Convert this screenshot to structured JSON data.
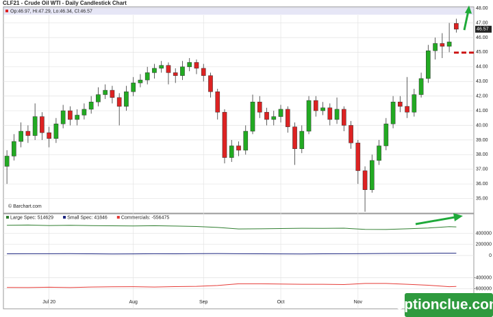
{
  "header": {
    "title": "CLF21 - Crude Oil WTI - Daily Candlestick Chart"
  },
  "watermark": "optionclue.com",
  "chart_data": [
    {
      "type": "candlestick",
      "info": "Op:46.97, Hi:47.29, Lo:46.34, Cl:46.57",
      "credit": "© Barchart.com",
      "up_color": "#22aa22",
      "down_color": "#dd2222",
      "open": [
        37.2,
        37.9,
        38.9,
        39.6,
        39.3,
        40.6,
        39.5,
        39.1,
        40.1,
        41.0,
        40.4,
        40.7,
        41.1,
        41.6,
        42.1,
        42.4,
        41.9,
        41.3,
        42.3,
        42.9,
        43.1,
        43.6,
        43.9,
        44.1,
        43.6,
        43.4,
        44.0,
        44.3,
        43.9,
        43.4,
        42.3,
        40.9,
        37.8,
        38.6,
        38.3,
        39.6,
        41.6,
        40.9,
        40.4,
        40.6,
        41.1,
        39.9,
        38.4,
        39.6,
        41.7,
        41.0,
        41.2,
        40.4,
        41.1,
        40.0,
        38.8,
        36.9,
        35.6,
        37.6,
        38.6,
        40.1,
        41.6,
        41.3,
        40.9,
        42.1,
        43.2,
        45.1,
        45.6,
        45.4,
        46.97
      ],
      "high": [
        38.3,
        39.4,
        40.2,
        40.0,
        41.5,
        40.9,
        39.9,
        40.5,
        41.4,
        41.3,
        41.1,
        41.5,
        42.0,
        42.6,
        42.8,
        42.7,
        42.2,
        42.7,
        43.3,
        43.5,
        44.0,
        44.2,
        44.4,
        44.3,
        43.9,
        44.4,
        44.6,
        44.5,
        44.2,
        43.6,
        42.5,
        41.1,
        39.0,
        38.9,
        40.0,
        42.1,
        42.0,
        41.2,
        41.0,
        41.4,
        41.3,
        40.2,
        40.0,
        42.0,
        42.0,
        41.6,
        41.5,
        41.9,
        41.3,
        40.3,
        39.0,
        37.2,
        38.0,
        39.0,
        40.5,
        42.0,
        42.0,
        43.3,
        42.5,
        43.6,
        45.5,
        46.0,
        46.3,
        47.0,
        47.29
      ],
      "low": [
        36.0,
        37.6,
        38.5,
        38.8,
        39.0,
        39.0,
        38.5,
        38.8,
        39.8,
        40.0,
        40.0,
        40.4,
        40.8,
        41.3,
        41.8,
        41.5,
        40.0,
        41.0,
        42.0,
        42.6,
        42.8,
        43.2,
        43.6,
        42.8,
        42.9,
        43.1,
        43.7,
        43.5,
        43.0,
        41.9,
        40.4,
        37.4,
        37.5,
        37.9,
        38.0,
        39.4,
        40.5,
        40.0,
        40.0,
        40.2,
        39.5,
        37.3,
        38.1,
        39.4,
        40.6,
        40.7,
        40.0,
        40.1,
        39.6,
        38.4,
        36.0,
        34.1,
        35.4,
        37.3,
        38.3,
        39.8,
        40.9,
        40.5,
        40.6,
        41.9,
        42.9,
        44.5,
        44.6,
        45.0,
        46.34
      ],
      "close": [
        37.9,
        38.9,
        39.6,
        39.3,
        40.6,
        39.5,
        39.1,
        40.1,
        41.0,
        40.4,
        40.7,
        41.1,
        41.6,
        42.1,
        42.4,
        41.9,
        41.3,
        42.3,
        42.9,
        43.1,
        43.6,
        43.9,
        44.1,
        43.6,
        43.4,
        44.0,
        44.3,
        43.9,
        43.4,
        42.3,
        40.9,
        37.8,
        38.6,
        38.3,
        39.6,
        41.6,
        40.9,
        40.4,
        40.6,
        41.1,
        39.9,
        38.4,
        39.6,
        41.7,
        41.0,
        41.2,
        40.4,
        41.1,
        40.0,
        38.8,
        36.9,
        35.6,
        37.6,
        38.6,
        40.1,
        41.6,
        41.3,
        40.9,
        42.1,
        43.2,
        45.1,
        45.6,
        45.4,
        45.7,
        46.57
      ],
      "xlim": [
        -0.5,
        66.5
      ],
      "xticks": [
        {
          "value": 6,
          "label": "Jul 20"
        },
        {
          "value": 18,
          "label": "Aug"
        },
        {
          "value": 28,
          "label": "Sep"
        },
        {
          "value": 39,
          "label": "Oct"
        },
        {
          "value": 50,
          "label": "Nov"
        }
      ],
      "ylim": [
        34,
        48.1
      ],
      "yticks": [
        {
          "value": 35,
          "label": "35.00"
        },
        {
          "value": 36,
          "label": "36.00"
        },
        {
          "value": 37,
          "label": "37.00"
        },
        {
          "value": 38,
          "label": "38.00"
        },
        {
          "value": 39,
          "label": "39.00"
        },
        {
          "value": 40,
          "label": "40.00"
        },
        {
          "value": 41,
          "label": "41.00"
        },
        {
          "value": 42,
          "label": "42.00"
        },
        {
          "value": 43,
          "label": "43.00"
        },
        {
          "value": 44,
          "label": "44.00"
        },
        {
          "value": 45,
          "label": "45.00"
        },
        {
          "value": 46,
          "label": "46.00"
        },
        {
          "value": 47,
          "label": "47.00"
        },
        {
          "value": 48,
          "label": "48.00"
        }
      ],
      "grid": true
    },
    {
      "type": "line",
      "x": [
        0,
        3,
        6,
        9,
        12,
        15,
        18,
        21,
        24,
        27,
        30,
        33,
        36,
        39,
        42,
        45,
        48,
        51,
        54,
        57,
        60,
        63,
        64
      ],
      "series": [
        {
          "name": "Large Spec: 514629",
          "color": "#2e7d2e",
          "values": [
            545000,
            548000,
            540000,
            545000,
            538000,
            535000,
            532000,
            536000,
            530000,
            522000,
            505000,
            478000,
            480000,
            486000,
            490000,
            488000,
            492000,
            470000,
            468000,
            480000,
            495000,
            520000,
            514629
          ]
        },
        {
          "name": "Small Spec: 41846",
          "color": "#1a237e",
          "values": [
            30000,
            32000,
            31000,
            33000,
            30000,
            28000,
            29000,
            31000,
            30000,
            33000,
            35000,
            32000,
            30000,
            29000,
            28000,
            30000,
            31000,
            34000,
            36000,
            38000,
            40000,
            41000,
            41846
          ]
        },
        {
          "name": "Commercials: -556475",
          "color": "#e53935",
          "values": [
            -575000,
            -578000,
            -571000,
            -578000,
            -568000,
            -563000,
            -561000,
            -567000,
            -560000,
            -555000,
            -540000,
            -510000,
            -510000,
            -515000,
            -518000,
            -518000,
            -523000,
            -504000,
            -504000,
            -518000,
            -535000,
            -561000,
            -556475
          ]
        }
      ],
      "xlim": [
        -0.5,
        66.5
      ],
      "ylim": [
        -960000,
        750000
      ],
      "yticks": [
        400000,
        200000,
        0,
        -400000,
        -600000
      ],
      "grid": true
    }
  ]
}
